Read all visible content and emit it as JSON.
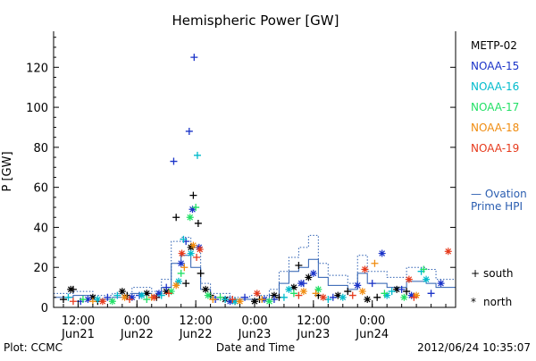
{
  "chart_data": {
    "type": "scatter",
    "title": "Hemispheric Power [GW]",
    "ylabel": "P [GW]",
    "xlabel": "Date and Time",
    "ylim": [
      0,
      138
    ],
    "yticks": [
      0,
      20,
      40,
      60,
      80,
      100,
      120
    ],
    "xlim": [
      "2012-06-21T07:00",
      "2012-06-24T17:00"
    ],
    "xticks": [
      {
        "t": "2012-06-21T12:00",
        "time": "12:00",
        "date": "Jun21"
      },
      {
        "t": "2012-06-22T00:00",
        "time": "0:00",
        "date": "Jun22"
      },
      {
        "t": "2012-06-22T12:00",
        "time": "12:00",
        "date": "Jun22"
      },
      {
        "t": "2012-06-23T00:00",
        "time": "0:00",
        "date": "Jun23"
      },
      {
        "t": "2012-06-23T12:00",
        "time": "12:00",
        "date": "Jun23"
      },
      {
        "t": "2012-06-24T00:00",
        "time": "0:00",
        "date": "Jun24"
      }
    ],
    "footer_left": "Plot: CCMC",
    "footer_right": "2012/06/24 10:35:07",
    "marker_legend": [
      {
        "symbol": "+",
        "label": "south"
      },
      {
        "symbol": "*",
        "label": "north"
      }
    ],
    "ovation_legend": [
      "— Ovation",
      "Prime HPI"
    ],
    "ovation_color": "#2a5db0",
    "series": [
      {
        "name": "METP-02",
        "color": "#000000",
        "south": [
          [
            "2012-06-21T09:00",
            4
          ],
          [
            "2012-06-21T11:00",
            9
          ],
          [
            "2012-06-21T16:00",
            3
          ],
          [
            "2012-06-21T22:00",
            6
          ],
          [
            "2012-06-22T04:00",
            5
          ],
          [
            "2012-06-22T08:00",
            45
          ],
          [
            "2012-06-22T10:00",
            12
          ],
          [
            "2012-06-22T11:30",
            56
          ],
          [
            "2012-06-22T12:30",
            42
          ],
          [
            "2012-06-22T13:00",
            17
          ],
          [
            "2012-06-22T15:00",
            6
          ],
          [
            "2012-06-22T20:00",
            3
          ],
          [
            "2012-06-23T01:00",
            4
          ],
          [
            "2012-06-23T05:00",
            5
          ],
          [
            "2012-06-23T09:00",
            21
          ],
          [
            "2012-06-23T13:00",
            6
          ],
          [
            "2012-06-23T19:00",
            8
          ],
          [
            "2012-06-24T01:00",
            5
          ],
          [
            "2012-06-24T07:00",
            8
          ]
        ],
        "north": [
          [
            "2012-06-21T10:30",
            9
          ],
          [
            "2012-06-21T15:00",
            5
          ],
          [
            "2012-06-21T21:00",
            8
          ],
          [
            "2012-06-22T02:00",
            7
          ],
          [
            "2012-06-22T06:00",
            8
          ],
          [
            "2012-06-22T11:00",
            30
          ],
          [
            "2012-06-22T14:00",
            9
          ],
          [
            "2012-06-22T18:00",
            4
          ],
          [
            "2012-06-23T00:00",
            3
          ],
          [
            "2012-06-23T04:00",
            6
          ],
          [
            "2012-06-23T08:00",
            10
          ],
          [
            "2012-06-23T11:00",
            15
          ],
          [
            "2012-06-23T17:00",
            6
          ],
          [
            "2012-06-23T23:00",
            4
          ],
          [
            "2012-06-24T05:00",
            9
          ]
        ]
      },
      {
        "name": "NOAA-15",
        "color": "#1a33c8",
        "south": [
          [
            "2012-06-21T12:30",
            3
          ],
          [
            "2012-06-21T18:00",
            5
          ],
          [
            "2012-06-22T00:30",
            6
          ],
          [
            "2012-06-22T06:00",
            10
          ],
          [
            "2012-06-22T07:30",
            73
          ],
          [
            "2012-06-22T10:00",
            33
          ],
          [
            "2012-06-22T10:40",
            88
          ],
          [
            "2012-06-22T11:40",
            125
          ],
          [
            "2012-06-22T16:00",
            4
          ],
          [
            "2012-06-22T22:00",
            5
          ],
          [
            "2012-06-23T04:00",
            4
          ],
          [
            "2012-06-23T10:00",
            12
          ],
          [
            "2012-06-23T16:00",
            5
          ],
          [
            "2012-06-24T00:00",
            12
          ],
          [
            "2012-06-24T06:00",
            9
          ],
          [
            "2012-06-24T12:00",
            7
          ]
        ],
        "north": [
          [
            "2012-06-21T14:00",
            4
          ],
          [
            "2012-06-21T23:00",
            5
          ],
          [
            "2012-06-22T04:30",
            7
          ],
          [
            "2012-06-22T09:00",
            22
          ],
          [
            "2012-06-22T11:20",
            49
          ],
          [
            "2012-06-22T12:40",
            30
          ],
          [
            "2012-06-22T19:00",
            3
          ],
          [
            "2012-06-23T02:00",
            4
          ],
          [
            "2012-06-23T09:30",
            12
          ],
          [
            "2012-06-23T12:00",
            17
          ],
          [
            "2012-06-23T21:00",
            11
          ],
          [
            "2012-06-24T02:00",
            27
          ],
          [
            "2012-06-24T08:00",
            6
          ],
          [
            "2012-06-24T14:00",
            12
          ]
        ]
      },
      {
        "name": "NOAA-16",
        "color": "#00bbcc",
        "south": [
          [
            "2012-06-21T10:00",
            5
          ],
          [
            "2012-06-21T20:00",
            6
          ],
          [
            "2012-06-22T05:00",
            6
          ],
          [
            "2012-06-22T09:30",
            34
          ],
          [
            "2012-06-22T12:20",
            76
          ],
          [
            "2012-06-22T18:00",
            4
          ],
          [
            "2012-06-23T06:00",
            5
          ],
          [
            "2012-06-23T15:00",
            4
          ],
          [
            "2012-06-24T04:00",
            8
          ],
          [
            "2012-06-24T10:00",
            18
          ]
        ],
        "north": [
          [
            "2012-06-21T16:00",
            4
          ],
          [
            "2012-06-22T01:00",
            6
          ],
          [
            "2012-06-22T08:30",
            13
          ],
          [
            "2012-06-22T11:00",
            27
          ],
          [
            "2012-06-22T20:00",
            3
          ],
          [
            "2012-06-23T07:00",
            9
          ],
          [
            "2012-06-23T18:00",
            5
          ],
          [
            "2012-06-24T03:00",
            6
          ],
          [
            "2012-06-24T11:00",
            14
          ]
        ]
      },
      {
        "name": "NOAA-17",
        "color": "#22e066",
        "south": [
          [
            "2012-06-21T13:00",
            4
          ],
          [
            "2012-06-22T02:00",
            4
          ],
          [
            "2012-06-22T09:00",
            17
          ],
          [
            "2012-06-22T12:00",
            50
          ],
          [
            "2012-06-22T17:00",
            5
          ],
          [
            "2012-06-23T08:00",
            7
          ],
          [
            "2012-06-24T02:30",
            7
          ],
          [
            "2012-06-24T10:30",
            19
          ]
        ],
        "north": [
          [
            "2012-06-21T19:00",
            3
          ],
          [
            "2012-06-22T07:00",
            8
          ],
          [
            "2012-06-22T10:50",
            45
          ],
          [
            "2012-06-22T14:30",
            6
          ],
          [
            "2012-06-23T03:00",
            3
          ],
          [
            "2012-06-23T13:00",
            9
          ],
          [
            "2012-06-24T06:30",
            5
          ]
        ]
      },
      {
        "name": "NOAA-18",
        "color": "#f08c10",
        "south": [
          [
            "2012-06-21T15:00",
            3
          ],
          [
            "2012-06-22T03:00",
            5
          ],
          [
            "2012-06-22T09:40",
            20
          ],
          [
            "2012-06-22T15:30",
            4
          ],
          [
            "2012-06-23T01:30",
            4
          ],
          [
            "2012-06-23T12:30",
            7
          ],
          [
            "2012-06-24T00:30",
            22
          ]
        ],
        "north": [
          [
            "2012-06-21T21:30",
            5
          ],
          [
            "2012-06-22T08:00",
            11
          ],
          [
            "2012-06-22T11:30",
            31
          ],
          [
            "2012-06-22T21:00",
            3
          ],
          [
            "2012-06-23T10:00",
            8
          ],
          [
            "2012-06-23T22:00",
            8
          ],
          [
            "2012-06-24T09:00",
            6
          ]
        ]
      },
      {
        "name": "NOAA-19",
        "color": "#e63a1c",
        "south": [
          [
            "2012-06-21T11:00",
            3
          ],
          [
            "2012-06-21T22:30",
            4
          ],
          [
            "2012-06-22T06:30",
            7
          ],
          [
            "2012-06-22T12:10",
            25
          ],
          [
            "2012-06-22T19:30",
            4
          ],
          [
            "2012-06-23T09:00",
            6
          ],
          [
            "2012-06-23T20:00",
            6
          ],
          [
            "2012-06-24T08:30",
            5
          ]
        ],
        "north": [
          [
            "2012-06-21T17:00",
            3
          ],
          [
            "2012-06-22T03:30",
            5
          ],
          [
            "2012-06-22T09:10",
            27
          ],
          [
            "2012-06-22T12:50",
            29
          ],
          [
            "2012-06-23T00:30",
            7
          ],
          [
            "2012-06-23T14:00",
            5
          ],
          [
            "2012-06-23T22:30",
            19
          ],
          [
            "2012-06-24T07:30",
            14
          ],
          [
            "2012-06-24T15:30",
            28
          ]
        ]
      }
    ],
    "ovation_south": [
      [
        "2012-06-21T07:00",
        7
      ],
      [
        "2012-06-21T11:00",
        8
      ],
      [
        "2012-06-21T15:00",
        6
      ],
      [
        "2012-06-21T19:00",
        7
      ],
      [
        "2012-06-21T23:00",
        10
      ],
      [
        "2012-06-22T03:00",
        8
      ],
      [
        "2012-06-22T05:00",
        14
      ],
      [
        "2012-06-22T07:00",
        33
      ],
      [
        "2012-06-22T09:00",
        35
      ],
      [
        "2012-06-22T11:00",
        30
      ],
      [
        "2012-06-22T13:00",
        12
      ],
      [
        "2012-06-22T15:00",
        7
      ],
      [
        "2012-06-22T19:00",
        5
      ],
      [
        "2012-06-22T23:00",
        6
      ],
      [
        "2012-06-23T03:00",
        9
      ],
      [
        "2012-06-23T05:00",
        18
      ],
      [
        "2012-06-23T07:00",
        25
      ],
      [
        "2012-06-23T09:00",
        30
      ],
      [
        "2012-06-23T11:00",
        36
      ],
      [
        "2012-06-23T13:00",
        22
      ],
      [
        "2012-06-23T15:00",
        16
      ],
      [
        "2012-06-23T19:00",
        12
      ],
      [
        "2012-06-23T21:00",
        26
      ],
      [
        "2012-06-23T23:00",
        18
      ],
      [
        "2012-06-24T03:00",
        15
      ],
      [
        "2012-06-24T07:00",
        20
      ],
      [
        "2012-06-24T11:00",
        19
      ],
      [
        "2012-06-24T13:00",
        14
      ],
      [
        "2012-06-24T17:00",
        14
      ]
    ],
    "ovation_north": [
      [
        "2012-06-21T07:00",
        5
      ],
      [
        "2012-06-21T11:00",
        6
      ],
      [
        "2012-06-21T15:00",
        4
      ],
      [
        "2012-06-21T19:00",
        5
      ],
      [
        "2012-06-21T23:00",
        7
      ],
      [
        "2012-06-22T03:00",
        6
      ],
      [
        "2012-06-22T05:00",
        10
      ],
      [
        "2012-06-22T07:00",
        22
      ],
      [
        "2012-06-22T09:00",
        26
      ],
      [
        "2012-06-22T11:00",
        20
      ],
      [
        "2012-06-22T13:00",
        9
      ],
      [
        "2012-06-22T15:00",
        5
      ],
      [
        "2012-06-22T19:00",
        4
      ],
      [
        "2012-06-22T23:00",
        4
      ],
      [
        "2012-06-23T03:00",
        6
      ],
      [
        "2012-06-23T05:00",
        12
      ],
      [
        "2012-06-23T07:00",
        18
      ],
      [
        "2012-06-23T09:00",
        20
      ],
      [
        "2012-06-23T11:00",
        24
      ],
      [
        "2012-06-23T13:00",
        15
      ],
      [
        "2012-06-23T15:00",
        11
      ],
      [
        "2012-06-23T19:00",
        9
      ],
      [
        "2012-06-23T21:00",
        17
      ],
      [
        "2012-06-23T23:00",
        12
      ],
      [
        "2012-06-24T03:00",
        10
      ],
      [
        "2012-06-24T07:00",
        13
      ],
      [
        "2012-06-24T11:00",
        12
      ],
      [
        "2012-06-24T13:00",
        10
      ],
      [
        "2012-06-24T17:00",
        10
      ]
    ]
  }
}
